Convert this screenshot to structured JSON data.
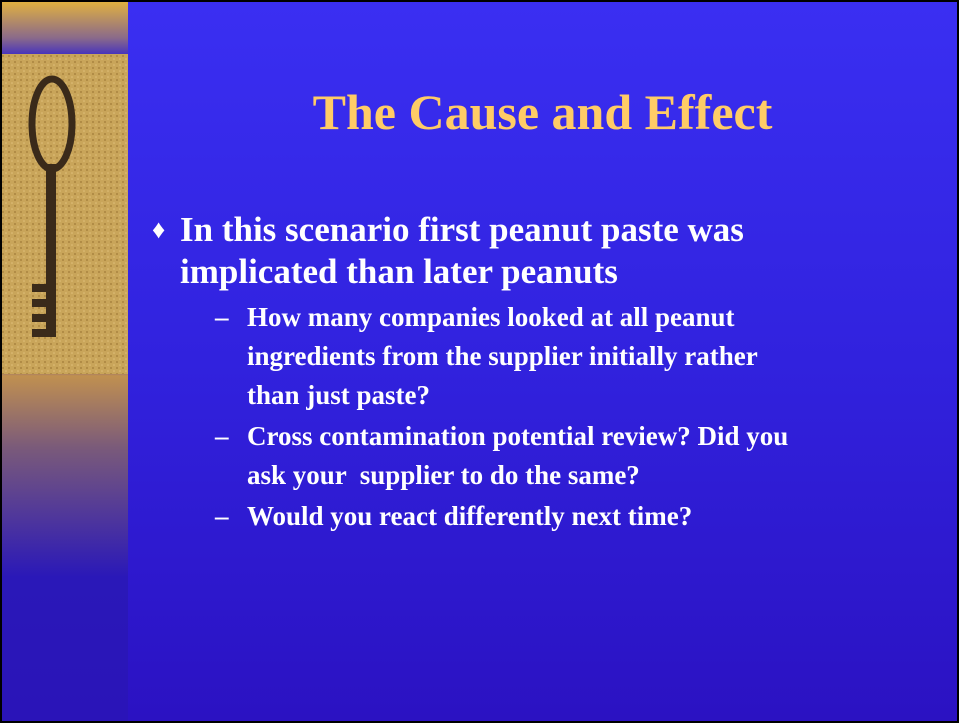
{
  "slide": {
    "title": "The Cause and Effect",
    "bullets": [
      {
        "lines": [
          "In this scenario first peanut paste was",
          "implicated than later peanuts"
        ],
        "sub_bullets": [
          {
            "lines": [
              "How many companies looked at all peanut",
              "ingredients from the supplier initially rather",
              "than just paste?"
            ]
          },
          {
            "lines": [
              "Cross contamination potential review? Did you",
              "ask your  supplier to do the same?"
            ]
          },
          {
            "lines": [
              "Would you react differently next time?"
            ]
          }
        ]
      }
    ]
  }
}
